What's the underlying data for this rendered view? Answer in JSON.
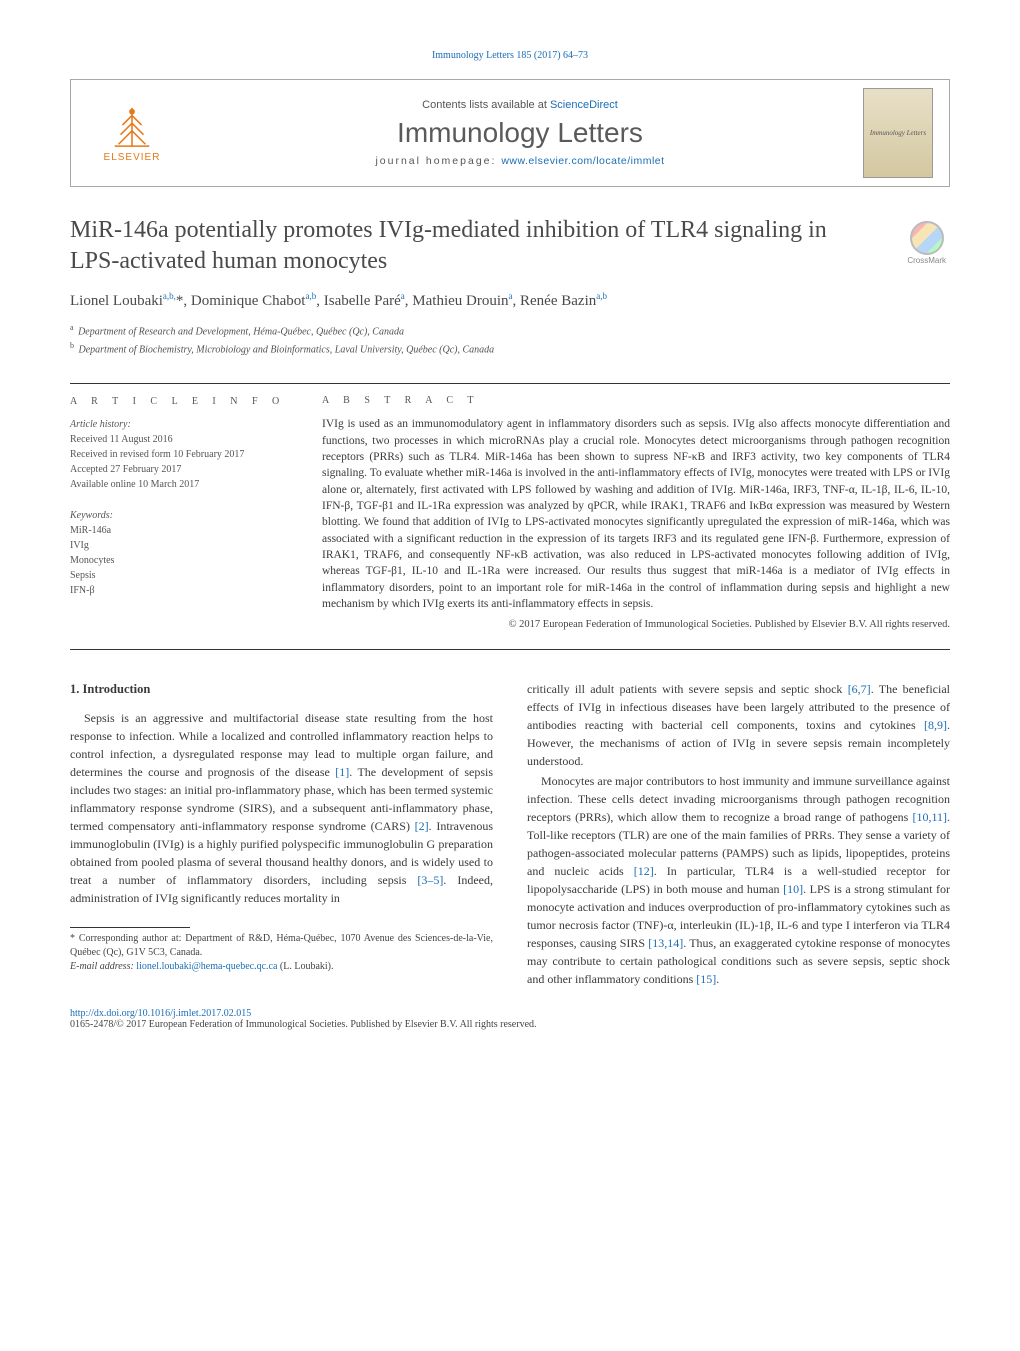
{
  "top_link": "Immunology Letters 185 (2017) 64–73",
  "masthead": {
    "contents_prefix": "Contents lists available at ",
    "contents_link": "ScienceDirect",
    "journal": "Immunology Letters",
    "homepage_prefix": "journal homepage: ",
    "homepage_link": "www.elsevier.com/locate/immlet",
    "elsevier": "ELSEVIER",
    "cover_label": "Immunology Letters"
  },
  "crossmark": "CrossMark",
  "title": "MiR-146a potentially promotes IVIg-mediated inhibition of TLR4 signaling in LPS-activated human monocytes",
  "authors_html": "Lionel Loubaki<sup>a,b,</sup>*, Dominique Chabot<sup>a,b</sup>, Isabelle Paré<sup>a</sup>, Mathieu Drouin<sup>a</sup>, Renée Bazin<sup>a,b</sup>",
  "affiliations": [
    {
      "sup": "a",
      "text": "Department of Research and Development, Héma-Québec, Québec (Qc), Canada"
    },
    {
      "sup": "b",
      "text": "Department of Biochemistry, Microbiology and Bioinformatics, Laval University, Québec (Qc), Canada"
    }
  ],
  "info_head_left": "A R T I C L E  I N F O",
  "info_head_right": "A B S T R A C T",
  "history": {
    "label": "Article history:",
    "received": "Received 11 August 2016",
    "revised": "Received in revised form 10 February 2017",
    "accepted": "Accepted 27 February 2017",
    "online": "Available online 10 March 2017"
  },
  "keywords": {
    "label": "Keywords:",
    "items": [
      "MiR-146a",
      "IVIg",
      "Monocytes",
      "Sepsis",
      "IFN-β"
    ]
  },
  "abstract": "IVIg is used as an immunomodulatory agent in inflammatory disorders such as sepsis. IVIg also affects monocyte differentiation and functions, two processes in which microRNAs play a crucial role. Monocytes detect microorganisms through pathogen recognition receptors (PRRs) such as TLR4. MiR-146a has been shown to supress NF-κB and IRF3 activity, two key components of TLR4 signaling. To evaluate whether miR-146a is involved in the anti-inflammatory effects of IVIg, monocytes were treated with LPS or IVIg alone or, alternately, first activated with LPS followed by washing and addition of IVIg. MiR-146a, IRF3, TNF-α, IL-1β, IL-6, IL-10, IFN-β, TGF-β1 and IL-1Ra expression was analyzed by qPCR, while IRAK1, TRAF6 and IκBα expression was measured by Western blotting. We found that addition of IVIg to LPS-activated monocytes significantly upregulated the expression of miR-146a, which was associated with a significant reduction in the expression of its targets IRF3 and its regulated gene IFN-β. Furthermore, expression of IRAK1, TRAF6, and consequently NF-κB activation, was also reduced in LPS-activated monocytes following addition of IVIg, whereas TGF-β1, IL-10 and IL-1Ra were increased. Our results thus suggest that miR-146a is a mediator of IVIg effects in inflammatory disorders, point to an important role for miR-146a in the control of inflammation during sepsis and highlight a new mechanism by which IVIg exerts its anti-inflammatory effects in sepsis.",
  "copyright": "© 2017 European Federation of Immunological Societies. Published by Elsevier B.V. All rights reserved.",
  "section1": "1. Introduction",
  "col_left_p1": "Sepsis is an aggressive and multifactorial disease state resulting from the host response to infection. While a localized and controlled inflammatory reaction helps to control infection, a dysregulated response may lead to multiple organ failure, and determines the course and prognosis of the disease [1]. The development of sepsis includes two stages: an initial pro-inflammatory phase, which has been termed systemic inflammatory response syndrome (SIRS), and a subsequent anti-inflammatory phase, termed compensatory anti-inflammatory response syndrome (CARS) [2]. Intravenous immunoglobulin (IVIg) is a highly purified polyspecific immunoglobulin G preparation obtained from pooled plasma of several thousand healthy donors, and is widely used to treat a number of inflammatory disorders, including sepsis [3–5]. Indeed, administration of IVIg significantly reduces mortality in",
  "col_right_p1": "critically ill adult patients with severe sepsis and septic shock [6,7]. The beneficial effects of IVIg in infectious diseases have been largely attributed to the presence of antibodies reacting with bacterial cell components, toxins and cytokines [8,9]. However, the mechanisms of action of IVIg in severe sepsis remain incompletely understood.",
  "col_right_p2": "Monocytes are major contributors to host immunity and immune surveillance against infection. These cells detect invading microorganisms through pathogen recognition receptors (PRRs), which allow them to recognize a broad range of pathogens [10,11]. Toll-like receptors (TLR) are one of the main families of PRRs. They sense a variety of pathogen-associated molecular patterns (PAMPS) such as lipids, lipopeptides, proteins and nucleic acids [12]. In particular, TLR4 is a well-studied receptor for lipopolysaccharide (LPS) in both mouse and human [10]. LPS is a strong stimulant for monocyte activation and induces overproduction of pro-inflammatory cytokines such as tumor necrosis factor (TNF)-α, interleukin (IL)-1β, IL-6 and type I interferon via TLR4 responses, causing SIRS [13,14]. Thus, an exaggerated cytokine response of monocytes may contribute to certain pathological conditions such as severe sepsis, septic shock and other inflammatory conditions [15].",
  "footnote": {
    "corr": "* Corresponding author at: Department of R&D, Héma-Québec, 1070 Avenue des Sciences-de-la-Vie, Québec (Qc), G1V 5C3, Canada.",
    "email_label": "E-mail address: ",
    "email": "lionel.loubaki@hema-quebec.qc.ca",
    "email_person": " (L. Loubaki)."
  },
  "doi": "http://dx.doi.org/10.1016/j.imlet.2017.02.015",
  "issn": "0165-2478/© 2017 European Federation of Immunological Societies. Published by Elsevier B.V. All rights reserved.",
  "colors": {
    "link": "#1a6db5",
    "text": "#3a3a3a",
    "elsevier": "#e67817"
  }
}
